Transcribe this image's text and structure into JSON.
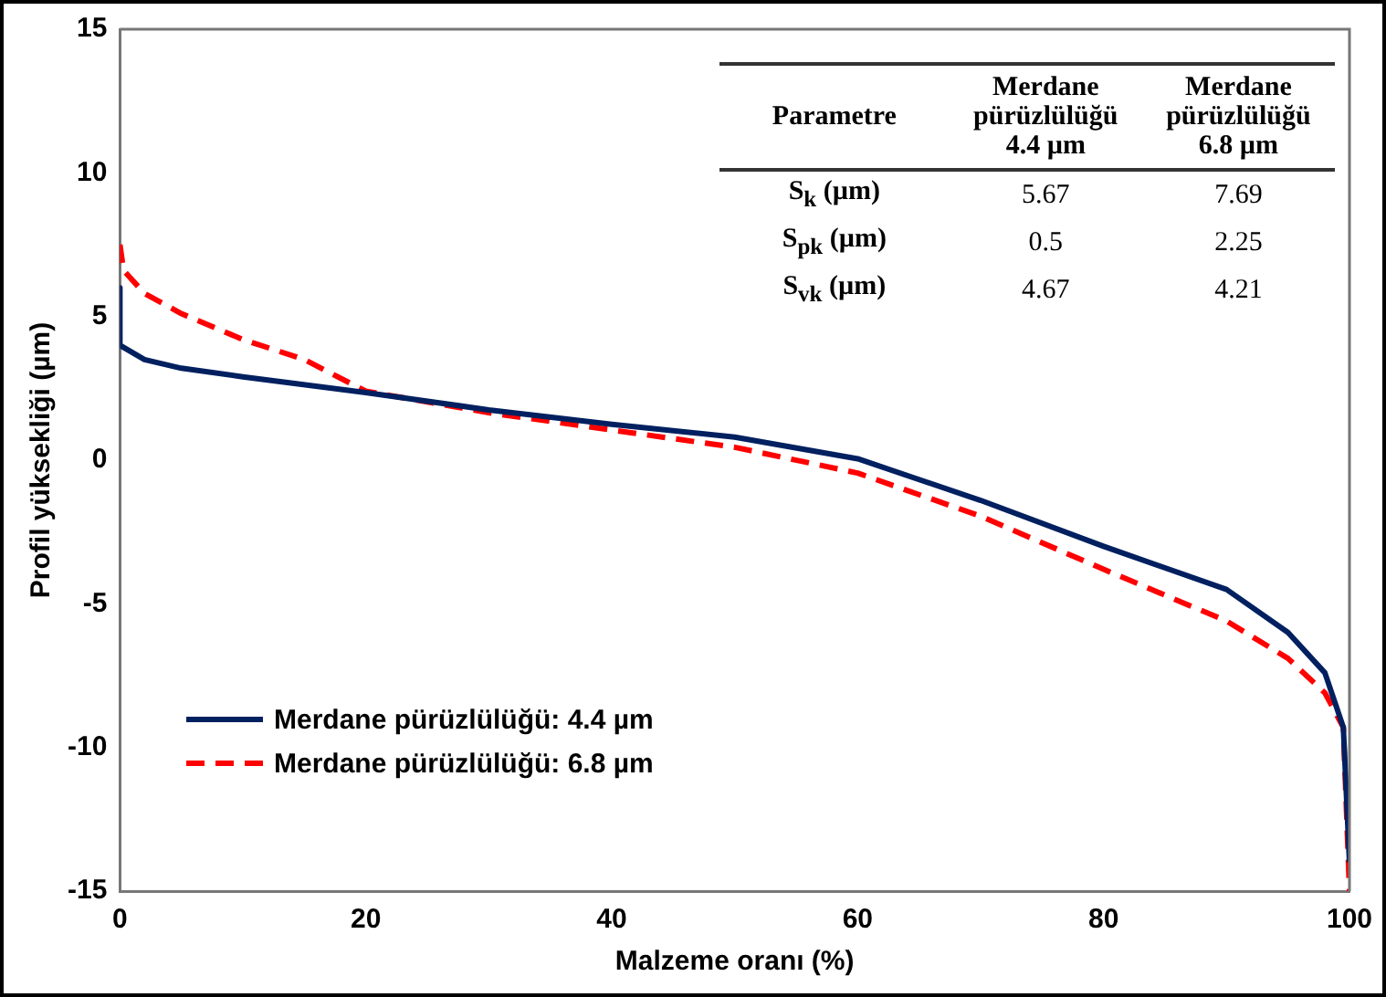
{
  "chart_data": {
    "type": "line",
    "xlabel": "Malzeme oranı (%)",
    "ylabel": "Profil yüksekliği (µm)",
    "xlim": [
      0,
      100
    ],
    "xticks": [
      0,
      20,
      40,
      60,
      80,
      100
    ],
    "ylim": [
      -15,
      15
    ],
    "yticks": [
      -15,
      -10,
      -5,
      0,
      5,
      10,
      15
    ],
    "grid": false,
    "legend": "bottom left",
    "marker": "none",
    "series": [
      {
        "name": "Merdane pürüzlülüğü: 4.4 µm",
        "color": "#002060",
        "line_style": "solid",
        "x": [
          0,
          0,
          2,
          5,
          10,
          20,
          30,
          40,
          50,
          60,
          70,
          80,
          90,
          95,
          98,
          99.5,
          100
        ],
        "values": [
          6.0,
          4.0,
          3.5,
          3.2,
          2.9,
          2.35,
          1.75,
          1.25,
          0.8,
          0.05,
          -1.4,
          -3.0,
          -4.5,
          -6.0,
          -7.4,
          -9.3,
          -14.0
        ]
      },
      {
        "name": "Merdane pürüzlülüğü: 6.8 µm",
        "color": "#ff0000",
        "line_style": "dashed",
        "x": [
          0,
          0.3,
          2,
          5,
          10,
          15,
          20,
          30,
          40,
          50,
          60,
          70,
          80,
          90,
          95,
          98,
          99.5,
          100
        ],
        "values": [
          7.5,
          6.6,
          5.8,
          5.1,
          4.2,
          3.5,
          2.4,
          1.65,
          1.05,
          0.45,
          -0.45,
          -1.95,
          -3.8,
          -5.6,
          -6.9,
          -8.1,
          -9.3,
          -15
        ]
      }
    ],
    "annotations": [
      "Parametre",
      "Merdane pürüzlülüğü 4.4 µm",
      "Merdane pürüzlülüğü 6.8 µm",
      "S$_{k}$ (µm)",
      "5.67",
      "7.69",
      "S$_{pk}$ (µm)",
      "0.5",
      "2.25",
      "S$_{vk}$ (µm)",
      "4.67",
      "4.21"
    ]
  }
}
